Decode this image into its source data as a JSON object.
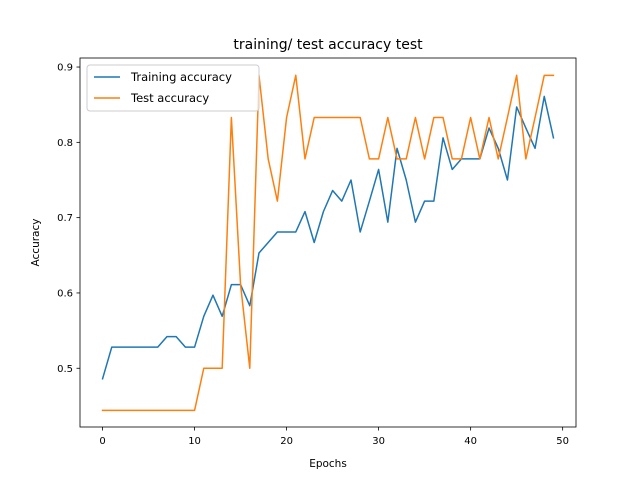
{
  "chart_data": {
    "type": "line",
    "title": "training/ test accuracy test",
    "xlabel": "Epochs",
    "ylabel": "Accuracy",
    "xlim": [
      -2.45,
      51.45
    ],
    "ylim": [
      0.422,
      0.912
    ],
    "xticks": [
      0,
      10,
      20,
      30,
      40,
      50
    ],
    "yticks": [
      0.5,
      0.6,
      0.7,
      0.8,
      0.9
    ],
    "xtick_labels": [
      "0",
      "10",
      "20",
      "30",
      "40",
      "50"
    ],
    "ytick_labels": [
      "0.5",
      "0.6",
      "0.7",
      "0.8",
      "0.9"
    ],
    "grid": false,
    "legend_position": "top-left",
    "series": [
      {
        "name": "Training accuracy",
        "color": "#1f77b4",
        "x": [
          0,
          1,
          2,
          3,
          4,
          5,
          6,
          7,
          8,
          9,
          10,
          11,
          12,
          13,
          14,
          15,
          16,
          17,
          18,
          19,
          20,
          21,
          22,
          23,
          24,
          25,
          26,
          27,
          28,
          29,
          30,
          31,
          32,
          33,
          34,
          35,
          36,
          37,
          38,
          39,
          40,
          41,
          42,
          43,
          44,
          45,
          46,
          47,
          48,
          49
        ],
        "values": [
          0.486,
          0.528,
          0.528,
          0.528,
          0.528,
          0.528,
          0.528,
          0.542,
          0.542,
          0.528,
          0.528,
          0.569,
          0.597,
          0.569,
          0.611,
          0.611,
          0.583,
          0.653,
          0.667,
          0.681,
          0.681,
          0.681,
          0.708,
          0.667,
          0.708,
          0.736,
          0.722,
          0.75,
          0.681,
          0.722,
          0.764,
          0.694,
          0.792,
          0.75,
          0.694,
          0.722,
          0.722,
          0.806,
          0.764,
          0.778,
          0.778,
          0.778,
          0.819,
          0.792,
          0.75,
          0.847,
          0.819,
          0.792,
          0.861,
          0.806
        ]
      },
      {
        "name": "Test accuracy",
        "color": "#ff7f0e",
        "x": [
          0,
          1,
          2,
          3,
          4,
          5,
          6,
          7,
          8,
          9,
          10,
          11,
          12,
          13,
          14,
          15,
          16,
          17,
          18,
          19,
          20,
          21,
          22,
          23,
          24,
          25,
          26,
          27,
          28,
          29,
          30,
          31,
          32,
          33,
          34,
          35,
          36,
          37,
          38,
          39,
          40,
          41,
          42,
          43,
          44,
          45,
          46,
          47,
          48,
          49
        ],
        "values": [
          0.444,
          0.444,
          0.444,
          0.444,
          0.444,
          0.444,
          0.444,
          0.444,
          0.444,
          0.444,
          0.444,
          0.5,
          0.5,
          0.5,
          0.833,
          0.611,
          0.5,
          0.889,
          0.778,
          0.722,
          0.833,
          0.889,
          0.778,
          0.833,
          0.833,
          0.833,
          0.833,
          0.833,
          0.833,
          0.778,
          0.778,
          0.833,
          0.778,
          0.778,
          0.833,
          0.778,
          0.833,
          0.833,
          0.778,
          0.778,
          0.833,
          0.778,
          0.833,
          0.778,
          0.833,
          0.889,
          0.778,
          0.833,
          0.889,
          0.889
        ]
      }
    ]
  }
}
